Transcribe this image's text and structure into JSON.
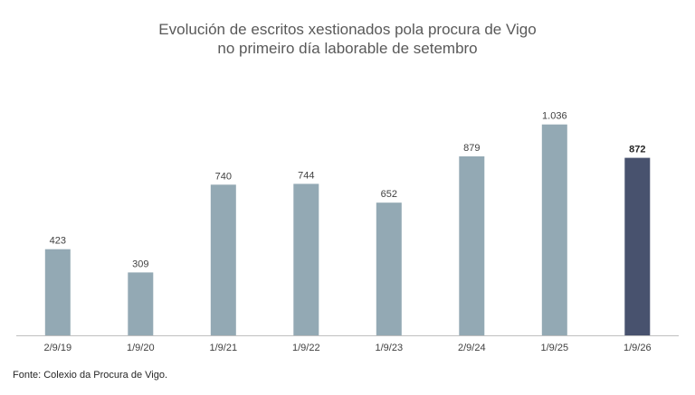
{
  "chart_data": {
    "type": "bar",
    "title": "Evolución de escritos xestionados pola procura de Vigo",
    "subtitle": "no primeiro día laborable de setembro",
    "xlabel": "",
    "ylabel": "",
    "categories": [
      "2/9/19",
      "1/9/20",
      "1/9/21",
      "1/9/22",
      "1/9/23",
      "2/9/24",
      "1/9/25",
      "1/9/26"
    ],
    "values": [
      423,
      309,
      740,
      744,
      652,
      879,
      1036,
      872
    ],
    "value_labels": [
      "423",
      "309",
      "740",
      "744",
      "652",
      "879",
      "1.036",
      "872"
    ],
    "ylim": [
      0,
      1150
    ],
    "grid": false,
    "legend": "none",
    "colors": {
      "bar": "#93a9b4",
      "highlight_bar": "#48526e",
      "axis": "#bfbfbf"
    },
    "highlight_index": 7
  },
  "source": "Fonte: Colexio da Procura de Vigo."
}
